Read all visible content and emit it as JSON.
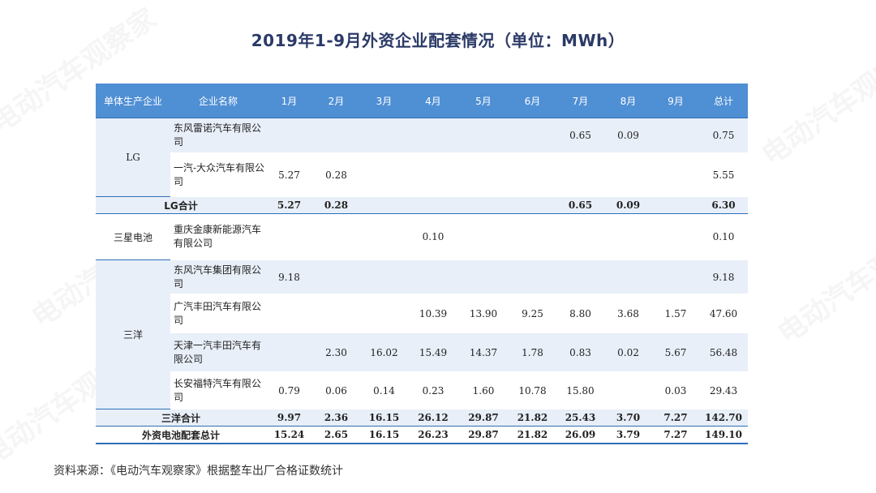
{
  "title": "2019年1-9月外资企业配套情况（单位：MWh）",
  "watermark": "电动汽车观察家",
  "table": {
    "headers": [
      "单体生产企业",
      "企业名称",
      "1月",
      "2月",
      "3月",
      "4月",
      "5月",
      "6月",
      "7月",
      "8月",
      "9月",
      "总计"
    ],
    "groups": {
      "lg": {
        "name": "LG",
        "rows": [
          {
            "company": "东风雷诺汽车有限公司",
            "v": [
              "",
              "",
              "",
              "",
              "",
              "",
              "0.65",
              "0.09",
              "",
              "0.75"
            ]
          },
          {
            "company": "一汽-大众汽车有限公司",
            "v": [
              "5.27",
              "0.28",
              "",
              "",
              "",
              "",
              "",
              "",
              "",
              "5.55"
            ]
          }
        ],
        "subtotal": {
          "label": "LG合计",
          "v": [
            "5.27",
            "0.28",
            "",
            "",
            "",
            "",
            "0.65",
            "0.09",
            "",
            "6.30"
          ]
        }
      },
      "samsung": {
        "name": "三星电池",
        "rows": [
          {
            "company": "重庆金康新能源汽车有限公司",
            "v": [
              "",
              "",
              "",
              "0.10",
              "",
              "",
              "",
              "",
              "",
              "0.10"
            ]
          }
        ]
      },
      "sanyo": {
        "name": "三洋",
        "rows": [
          {
            "company": "东风汽车集团有限公司",
            "v": [
              "9.18",
              "",
              "",
              "",
              "",
              "",
              "",
              "",
              "",
              "9.18"
            ]
          },
          {
            "company": "广汽丰田汽车有限公司",
            "v": [
              "",
              "",
              "",
              "10.39",
              "13.90",
              "9.25",
              "8.80",
              "3.68",
              "1.57",
              "47.60"
            ]
          },
          {
            "company": "天津一汽丰田汽车有限公司",
            "v": [
              "",
              "2.30",
              "16.02",
              "15.49",
              "14.37",
              "1.78",
              "0.83",
              "0.02",
              "5.67",
              "56.48"
            ]
          },
          {
            "company": "长安福特汽车有限公司",
            "v": [
              "0.79",
              "0.06",
              "0.14",
              "0.23",
              "1.60",
              "10.78",
              "15.80",
              "",
              "0.03",
              "29.43"
            ]
          }
        ],
        "subtotal": {
          "label": "三洋合计",
          "v": [
            "9.97",
            "2.36",
            "16.15",
            "26.12",
            "29.87",
            "21.82",
            "25.43",
            "3.70",
            "7.27",
            "142.70"
          ]
        }
      }
    },
    "grand_total": {
      "label": "外资电池配套总计",
      "v": [
        "15.24",
        "2.65",
        "16.15",
        "26.23",
        "29.87",
        "21.82",
        "26.09",
        "3.79",
        "7.27",
        "149.10"
      ]
    }
  },
  "source": "资料来源：《电动汽车观察家》根据整车出厂合格证数统计"
}
